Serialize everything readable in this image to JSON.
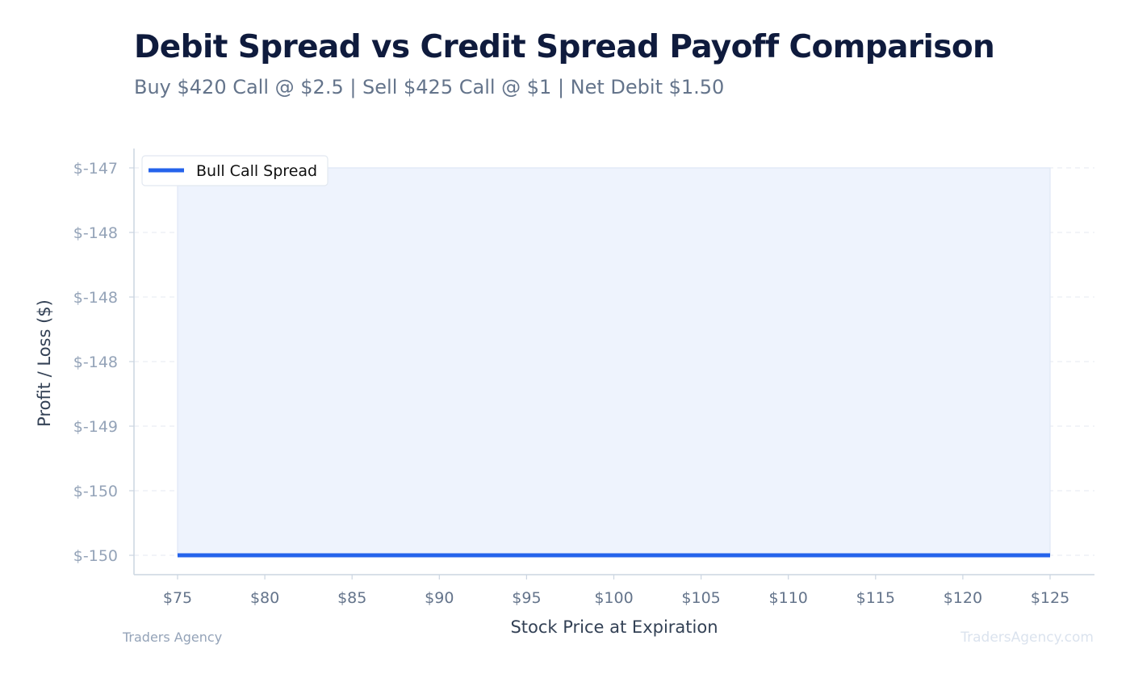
{
  "header": {
    "title": "Debit Spread vs Credit Spread Payoff Comparison",
    "subtitle": "Buy $420 Call @ $2.5 | Sell $425 Call @ $1 | Net Debit $1.50"
  },
  "footer": {
    "left": "Traders Agency",
    "right": "TradersAgency.com"
  },
  "colors": {
    "line": "#2563eb",
    "fill": "#eef3fd",
    "grid": "#e5e9f0",
    "axis": "#cbd5e1",
    "tick_y": "#94a3b8",
    "tick_x": "#64748b"
  },
  "chart_data": {
    "type": "line",
    "title": "Debit Spread vs Credit Spread Payoff Comparison",
    "subtitle": "Buy $420 Call @ $2.5 | Sell $425 Call @ $1 | Net Debit $1.50",
    "xlabel": "Stock Price at Expiration",
    "ylabel": "Profit / Loss ($)",
    "xlim": [
      75,
      125
    ],
    "ylim": [
      -150,
      -147
    ],
    "x_ticks": [
      75,
      80,
      85,
      90,
      95,
      100,
      105,
      110,
      115,
      120,
      125
    ],
    "x_tick_labels": [
      "$75",
      "$80",
      "$85",
      "$90",
      "$95",
      "$100",
      "$105",
      "$110",
      "$115",
      "$120",
      "$125"
    ],
    "y_ticks": [
      -147,
      -147.5,
      -148,
      -148.5,
      -149,
      -149.5,
      -150
    ],
    "y_tick_labels": [
      "$-147",
      "$-148",
      "$-148",
      "$-148",
      "$-149",
      "$-150",
      "$-150"
    ],
    "grid": "horizontal dashed",
    "legend_position": "top-left",
    "fill_between": "area from series line up to top of plot shaded light blue",
    "series": [
      {
        "name": "Bull Call Spread",
        "x": [
          75,
          80,
          85,
          90,
          95,
          100,
          105,
          110,
          115,
          120,
          125
        ],
        "y": [
          -150,
          -150,
          -150,
          -150,
          -150,
          -150,
          -150,
          -150,
          -150,
          -150,
          -150
        ]
      }
    ]
  }
}
